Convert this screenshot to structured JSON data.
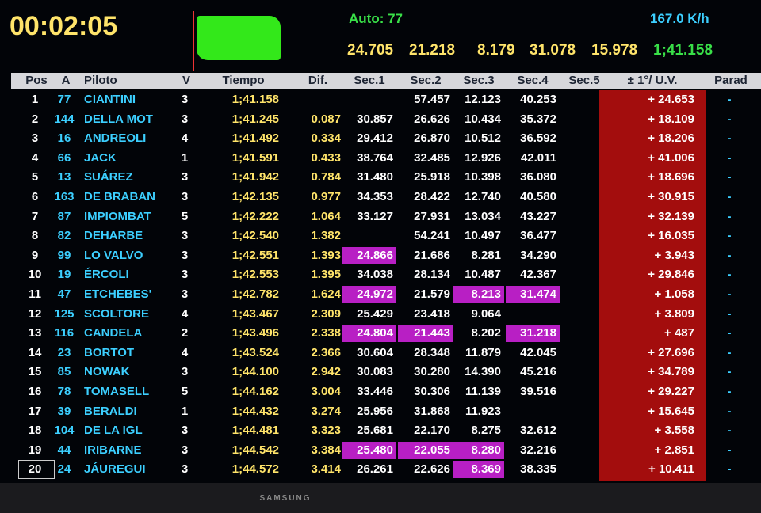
{
  "clock": "00:02:05",
  "car_label": "Auto: 77",
  "speed": "167.0 K/h",
  "best_sectors": [
    "24.705",
    "21.218",
    "8.179",
    "31.078",
    "15.978",
    "1;41.158"
  ],
  "table": {
    "columns": [
      "Pos",
      "A",
      "Piloto",
      "V",
      "Tiempo",
      "Dif.",
      "Sec.1",
      "Sec.2",
      "Sec.3",
      "Sec.4",
      "Sec.5",
      "± 1°/ U.V.",
      "Parad"
    ],
    "rows": [
      [
        "1",
        "77",
        "CIANTINI",
        "3",
        "1;41.158",
        null,
        null,
        "57.457",
        "12.123",
        "40.253",
        null,
        "+ 24.653",
        "-"
      ],
      [
        "2",
        "144",
        "DELLA MOT",
        "3",
        "1;41.245",
        "0.087",
        "30.857",
        "26.626",
        "10.434",
        "35.372",
        null,
        "+ 18.109",
        "-"
      ],
      [
        "3",
        "16",
        "ANDREOLI",
        "4",
        "1;41.492",
        "0.334",
        "29.412",
        "26.870",
        "10.512",
        "36.592",
        null,
        "+ 18.206",
        "-"
      ],
      [
        "4",
        "66",
        "JACK",
        "1",
        "1;41.591",
        "0.433",
        "38.764",
        "32.485",
        "12.926",
        "42.011",
        null,
        "+ 41.006",
        "-"
      ],
      [
        "5",
        "13",
        "SUÁREZ",
        "3",
        "1;41.942",
        "0.784",
        "31.480",
        "25.918",
        "10.398",
        "36.080",
        null,
        "+ 18.696",
        "-"
      ],
      [
        "6",
        "163",
        "DE BRABAN",
        "3",
        "1;42.135",
        "0.977",
        "34.353",
        "28.422",
        "12.740",
        "40.580",
        null,
        "+ 30.915",
        "-"
      ],
      [
        "7",
        "87",
        "IMPIOMBAT",
        "5",
        "1;42.222",
        "1.064",
        "33.127",
        "27.931",
        "13.034",
        "43.227",
        null,
        "+ 32.139",
        "-"
      ],
      [
        "8",
        "82",
        "DEHARBE",
        "3",
        "1;42.540",
        "1.382",
        null,
        "54.241",
        "10.497",
        "36.477",
        null,
        "+ 16.035",
        "-"
      ],
      [
        "9",
        "99",
        "LO VALVO",
        "3",
        "1;42.551",
        "1.393",
        "24.866",
        "21.686",
        "8.281",
        "34.290",
        null,
        "+ 3.943",
        "-"
      ],
      [
        "10",
        "19",
        "ÉRCOLI",
        "3",
        "1;42.553",
        "1.395",
        "34.038",
        "28.134",
        "10.487",
        "42.367",
        null,
        "+ 29.846",
        "-"
      ],
      [
        "11",
        "47",
        "ETCHEBES'",
        "3",
        "1;42.782",
        "1.624",
        "24.972",
        "21.579",
        "8.213",
        "31.474",
        null,
        "+ 1.058",
        "-"
      ],
      [
        "12",
        "125",
        "SCOLTORE",
        "4",
        "1;43.467",
        "2.309",
        "25.429",
        "23.418",
        "9.064",
        null,
        null,
        "+ 3.809",
        "-"
      ],
      [
        "13",
        "116",
        "CANDELA",
        "2",
        "1;43.496",
        "2.338",
        "24.804",
        "21.443",
        "8.202",
        "31.218",
        null,
        "+ 487",
        "-"
      ],
      [
        "14",
        "23",
        "BORTOT",
        "4",
        "1;43.524",
        "2.366",
        "30.604",
        "28.348",
        "11.879",
        "42.045",
        null,
        "+ 27.696",
        "-"
      ],
      [
        "15",
        "85",
        "NOWAK",
        "3",
        "1;44.100",
        "2.942",
        "30.083",
        "30.280",
        "14.390",
        "45.216",
        null,
        "+ 34.789",
        "-"
      ],
      [
        "16",
        "78",
        "TOMASELL",
        "5",
        "1;44.162",
        "3.004",
        "33.446",
        "30.306",
        "11.139",
        "39.516",
        null,
        "+ 29.227",
        "-"
      ],
      [
        "17",
        "39",
        "BERALDI",
        "1",
        "1;44.432",
        "3.274",
        "25.956",
        "31.868",
        "11.923",
        null,
        null,
        "+ 15.645",
        "-"
      ],
      [
        "18",
        "104",
        "DE LA IGL",
        "3",
        "1;44.481",
        "3.323",
        "25.681",
        "22.170",
        "8.275",
        "32.612",
        null,
        "+ 3.558",
        "-"
      ],
      [
        "19",
        "44",
        "IRIBARNE",
        "3",
        "1;44.542",
        "3.384",
        "25.480",
        "22.055",
        "8.280",
        "32.216",
        null,
        "+ 2.851",
        "-"
      ],
      [
        "20",
        "24",
        "JÁUREGUI",
        "3",
        "1;44.572",
        "3.414",
        "26.261",
        "22.626",
        "8.369",
        "38.335",
        null,
        "+ 10.411",
        "-"
      ]
    ],
    "highlighted_cells": [
      [
        8,
        6
      ],
      [
        10,
        6
      ],
      [
        10,
        8
      ],
      [
        10,
        9
      ],
      [
        12,
        6
      ],
      [
        12,
        7
      ],
      [
        12,
        9
      ],
      [
        18,
        6
      ],
      [
        18,
        7
      ],
      [
        18,
        8
      ],
      [
        19,
        8
      ]
    ],
    "highlight_color": "#b81fc4"
  },
  "brand": "SAMSUNG"
}
